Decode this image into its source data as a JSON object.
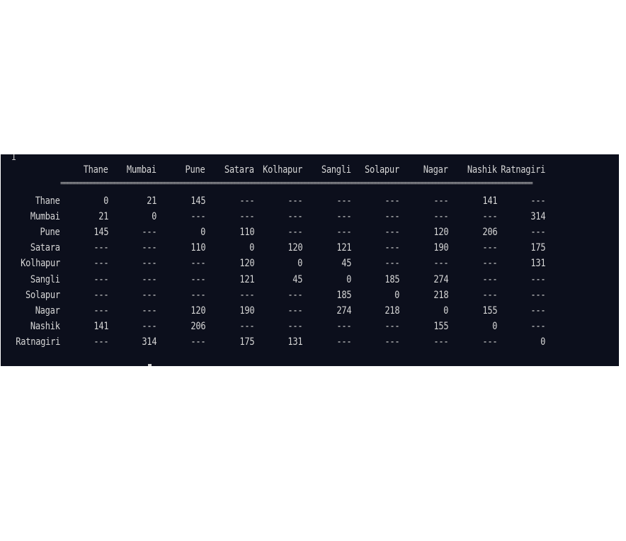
{
  "terminal": {
    "cursor_char": "I",
    "separator": "=============================================================================================================================================",
    "columns": [
      "Thane",
      "Mumbai",
      "Pune",
      "Satara",
      "Kolhapur",
      "Sangli",
      "Solapur",
      "Nagar",
      "Nashik",
      "Ratnagiri"
    ],
    "rows": [
      {
        "name": "Thane",
        "values": [
          "0",
          "21",
          "145",
          "---",
          "---",
          "---",
          "---",
          "---",
          "141",
          "---"
        ]
      },
      {
        "name": "Mumbai",
        "values": [
          "21",
          "0",
          "---",
          "---",
          "---",
          "---",
          "---",
          "---",
          "---",
          "314"
        ]
      },
      {
        "name": "Pune",
        "values": [
          "145",
          "---",
          "0",
          "110",
          "---",
          "---",
          "---",
          "120",
          "206",
          "---"
        ]
      },
      {
        "name": "Satara",
        "values": [
          "---",
          "---",
          "110",
          "0",
          "120",
          "121",
          "---",
          "190",
          "---",
          "175"
        ]
      },
      {
        "name": "Kolhapur",
        "values": [
          "---",
          "---",
          "---",
          "120",
          "0",
          "45",
          "---",
          "---",
          "---",
          "131"
        ]
      },
      {
        "name": "Sangli",
        "values": [
          "---",
          "---",
          "---",
          "121",
          "45",
          "0",
          "185",
          "274",
          "---",
          "---"
        ]
      },
      {
        "name": "Solapur",
        "values": [
          "---",
          "---",
          "---",
          "---",
          "---",
          "185",
          "0",
          "218",
          "---",
          "---"
        ]
      },
      {
        "name": "Nagar",
        "values": [
          "---",
          "---",
          "120",
          "190",
          "---",
          "274",
          "218",
          "0",
          "155",
          "---"
        ]
      },
      {
        "name": "Nashik",
        "values": [
          "141",
          "---",
          "206",
          "---",
          "---",
          "---",
          "---",
          "155",
          "0",
          "---"
        ]
      },
      {
        "name": "Ratnagiri",
        "values": [
          "---",
          "314",
          "---",
          "175",
          "131",
          "---",
          "---",
          "---",
          "---",
          "0"
        ]
      }
    ]
  }
}
